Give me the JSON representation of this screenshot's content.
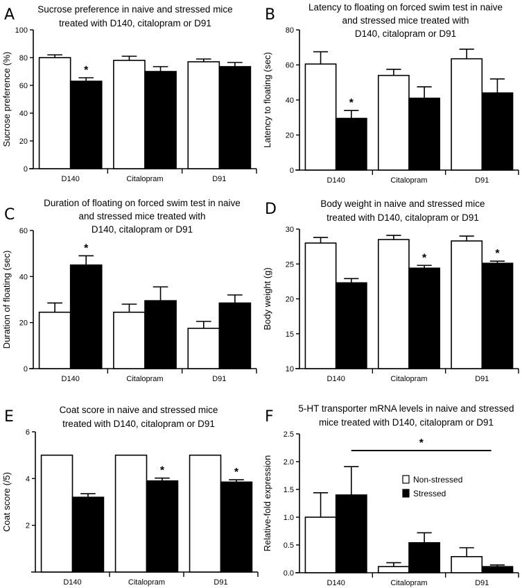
{
  "figure": {
    "legend": {
      "items": [
        {
          "label": "Non-stressed",
          "color": "#ffffff"
        },
        {
          "label": "Stressed",
          "color": "#000000"
        }
      ],
      "placement": "panel F, upper-middle"
    }
  },
  "chart_data": [
    {
      "panel": "A",
      "type": "bar",
      "title_lines": [
        "Sucrose preference in naive and stressed mice",
        "treated with D140, citalopram or D91"
      ],
      "xlabel": "",
      "ylabel": "Sucrose preference (%)",
      "ylim": [
        0,
        100
      ],
      "yticks": [
        0,
        20,
        40,
        60,
        80,
        100
      ],
      "ytick_labels": [
        "0",
        "20",
        "40",
        "60",
        "80",
        "100"
      ],
      "categories": [
        "D140",
        "Citalopram",
        "D91"
      ],
      "series": [
        {
          "name": "Non-stressed",
          "color": "#ffffff",
          "values": [
            80,
            78,
            77
          ],
          "errors": [
            2,
            3,
            2
          ]
        },
        {
          "name": "Stressed",
          "color": "#000000",
          "values": [
            63,
            70,
            73.5
          ],
          "errors": [
            2.5,
            3.5,
            3
          ]
        }
      ],
      "annotations": [
        {
          "text": "*",
          "category": "D140",
          "series": "Stressed"
        }
      ]
    },
    {
      "panel": "B",
      "type": "bar",
      "title_lines": [
        "Latency to floating on forced swim test in naive",
        "and stressed mice treated with",
        "D140, citalopram or D91"
      ],
      "xlabel": "",
      "ylabel": "Latency to floating (sec)",
      "ylim": [
        0,
        80
      ],
      "yticks": [
        0,
        20,
        40,
        60,
        80
      ],
      "ytick_labels": [
        "0",
        "20",
        "40",
        "60",
        "80"
      ],
      "categories": [
        "D140",
        "Citalopram",
        "D91"
      ],
      "series": [
        {
          "name": "Non-stressed",
          "color": "#ffffff",
          "values": [
            60.5,
            54,
            63.5
          ],
          "errors": [
            7,
            3.5,
            5.5
          ]
        },
        {
          "name": "Stressed",
          "color": "#000000",
          "values": [
            29.5,
            41,
            44
          ],
          "errors": [
            4.5,
            6.5,
            8
          ]
        }
      ],
      "annotations": [
        {
          "text": "*",
          "category": "D140",
          "series": "Stressed"
        }
      ]
    },
    {
      "panel": "C",
      "type": "bar",
      "title_lines": [
        "Duration of floating on forced swim test in naive",
        "and stressed mice treated with",
        "D140, citalopram or D91"
      ],
      "xlabel": "",
      "ylabel": "Duration of floating (sec)",
      "ylim": [
        0,
        60
      ],
      "yticks": [
        0,
        20,
        40,
        60
      ],
      "ytick_labels": [
        "0",
        "20",
        "40",
        "60"
      ],
      "categories": [
        "D140",
        "Citalopram",
        "D91"
      ],
      "series": [
        {
          "name": "Non-stressed",
          "color": "#ffffff",
          "values": [
            24.5,
            24.5,
            17.5
          ],
          "errors": [
            4,
            3.5,
            3
          ]
        },
        {
          "name": "Stressed",
          "color": "#000000",
          "values": [
            45,
            29.5,
            28.5
          ],
          "errors": [
            4,
            6,
            3.5
          ]
        }
      ],
      "annotations": [
        {
          "text": "*",
          "category": "D140",
          "series": "Stressed"
        }
      ]
    },
    {
      "panel": "D",
      "type": "bar",
      "title_lines": [
        "Body weight in naive and stressed mice",
        "treated with D140, citalopram or D91"
      ],
      "xlabel": "",
      "ylabel": "Body weight (g)",
      "ylim": [
        10,
        30
      ],
      "yticks": [
        10,
        15,
        20,
        25,
        30
      ],
      "ytick_labels": [
        "10",
        "15",
        "20",
        "25",
        "30"
      ],
      "categories": [
        "D140",
        "Citalopram",
        "D91"
      ],
      "series": [
        {
          "name": "Non-stressed",
          "color": "#ffffff",
          "values": [
            28,
            28.5,
            28.3
          ],
          "errors": [
            0.8,
            0.6,
            0.7
          ]
        },
        {
          "name": "Stressed",
          "color": "#000000",
          "values": [
            22.3,
            24.4,
            25.1
          ],
          "errors": [
            0.6,
            0.4,
            0.3
          ]
        }
      ],
      "annotations": [
        {
          "text": "*",
          "category": "Citalopram",
          "series": "Stressed"
        },
        {
          "text": "*",
          "category": "D91",
          "series": "Stressed"
        }
      ]
    },
    {
      "panel": "E",
      "type": "bar",
      "title_lines": [
        "Coat score in naive and stressed mice",
        "treated with D140, citalopram or D91"
      ],
      "xlabel": "",
      "ylabel": "Coat score (/5)",
      "ylim": [
        0,
        6
      ],
      "yticks": [
        2,
        4,
        6
      ],
      "ytick_labels": [
        "2",
        "4",
        "6"
      ],
      "categories": [
        "D140",
        "Citalopram",
        "D91"
      ],
      "series": [
        {
          "name": "Non-stressed",
          "color": "#ffffff",
          "values": [
            5,
            5,
            5
          ],
          "errors": [
            0,
            0,
            0
          ]
        },
        {
          "name": "Stressed",
          "color": "#000000",
          "values": [
            3.2,
            3.9,
            3.85
          ],
          "errors": [
            0.15,
            0.12,
            0.1
          ]
        }
      ],
      "annotations": [
        {
          "text": "*",
          "category": "Citalopram",
          "series": "Stressed"
        },
        {
          "text": "*",
          "category": "D91",
          "series": "Stressed"
        }
      ]
    },
    {
      "panel": "F",
      "type": "bar",
      "title_lines": [
        "5-HT transporter mRNA levels in naive and stressed",
        "mice treated with D140, citalopram or D91"
      ],
      "xlabel": "",
      "ylabel": "Relative-fold expression",
      "ylim": [
        0,
        2.5
      ],
      "yticks": [
        0,
        0.5,
        1.0,
        1.5,
        2.0,
        2.5
      ],
      "ytick_labels": [
        "0.0",
        "0.5",
        "1.0",
        "1.5",
        "2.0",
        "2.5"
      ],
      "categories": [
        "D140",
        "Citalopram",
        "D91"
      ],
      "series": [
        {
          "name": "Non-stressed",
          "color": "#ffffff",
          "values": [
            1.0,
            0.11,
            0.29
          ],
          "errors": [
            0.44,
            0.07,
            0.16
          ]
        },
        {
          "name": "Stressed",
          "color": "#000000",
          "values": [
            1.4,
            0.54,
            0.11
          ],
          "errors": [
            0.51,
            0.18,
            0.03
          ]
        }
      ],
      "annotations": [
        {
          "text": "*",
          "type": "bracket",
          "from_category": "D140",
          "to_category": "D91",
          "y": 2.2
        }
      ],
      "legend": {
        "labels": [
          "Non-stressed",
          "Stressed"
        ]
      }
    }
  ]
}
